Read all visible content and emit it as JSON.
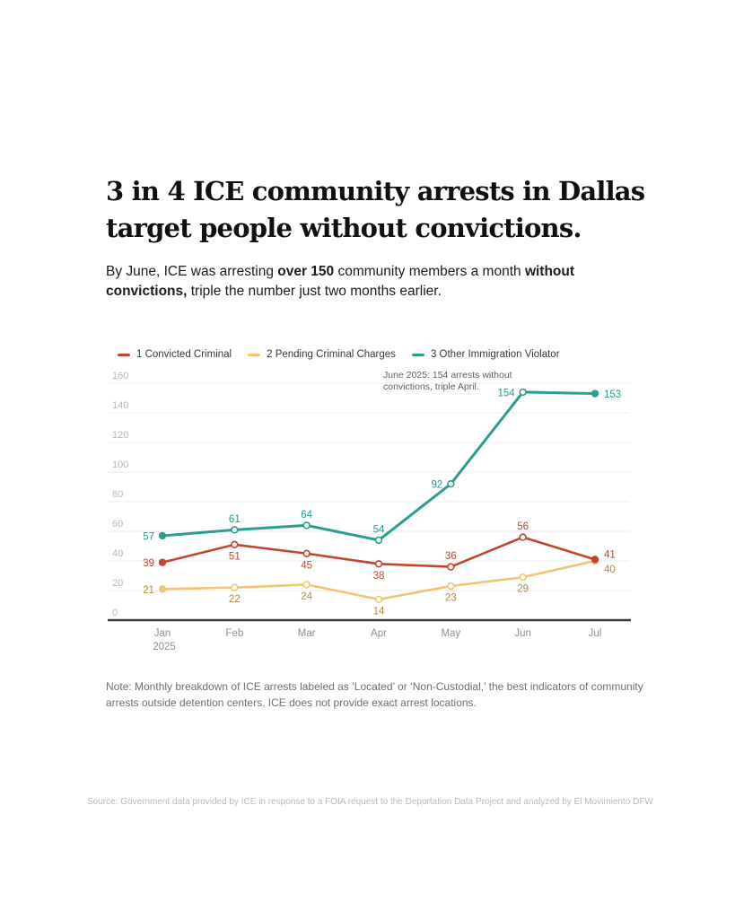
{
  "header": {
    "title_line1": "3 in 4 ICE community arrests in Dallas",
    "title_line2": "target people without convictions.",
    "subtitle_segments": [
      {
        "text": "By June, ICE was arresting ",
        "bold": false
      },
      {
        "text": "over 150",
        "bold": true
      },
      {
        "text": " community members a month ",
        "bold": false
      },
      {
        "text": "without",
        "bold": true
      },
      {
        "break": true
      },
      {
        "text": "convictions,",
        "bold": true
      },
      {
        "text": " triple the number just two months earlier.",
        "bold": false
      }
    ]
  },
  "chart_data": {
    "type": "line",
    "title": "",
    "x": [
      "Jan",
      "Feb",
      "Mar",
      "Apr",
      "May",
      "Jun",
      "Jul"
    ],
    "x_sub_label": {
      "index": 0,
      "text": "2025"
    },
    "y_ticks": [
      0,
      20,
      40,
      60,
      80,
      100,
      120,
      140,
      160
    ],
    "ylim": [
      0,
      160
    ],
    "grid": true,
    "legend_position": "top",
    "series": [
      {
        "name": "1 Convicted Criminal",
        "color": "#c2452f",
        "label_color": "#c2452f",
        "values": [
          39,
          51,
          45,
          38,
          36,
          56,
          41
        ],
        "label_pos": [
          "left",
          "below",
          "below",
          "below",
          "above",
          "above",
          "right-up"
        ]
      },
      {
        "name": "2 Pending Criminal Charges",
        "color": "#f3c471",
        "label_color": "#b18c3d",
        "values": [
          21,
          22,
          24,
          14,
          23,
          29,
          40
        ],
        "label_pos": [
          "left",
          "below",
          "below",
          "below",
          "below",
          "below",
          "right-down"
        ]
      },
      {
        "name": "3 Other Immigration Violator",
        "color": "#2b9e8f",
        "label_color": "#27998a",
        "values": [
          57,
          61,
          64,
          54,
          92,
          154,
          153
        ],
        "label_pos": [
          "left",
          "above",
          "above",
          "above",
          "left",
          "left",
          "right"
        ]
      }
    ],
    "draw_order": [
      1,
      0,
      2
    ],
    "annotation": {
      "lines": [
        "June 2025: 154 arrests without",
        "convictions, triple April."
      ]
    },
    "colors": {
      "axis": "#3a3a3a",
      "grid": "#ececec",
      "y_tick": "#b8b8b8",
      "x_tick": "#8f8f8f",
      "annotation": "#606060"
    }
  },
  "note": {
    "lines": [
      "Note: Monthly breakdown of ICE arrests labeled as ‘Located’ or ‘Non-Custodial,’ the best indicators of community",
      "arrests outside detention centers. ICE does not provide exact arrest locations."
    ]
  },
  "source": "Source: Government data provided by ICE in response to a FOIA request to the Deportation Data Project and analyzed by El Movimiento DFW"
}
